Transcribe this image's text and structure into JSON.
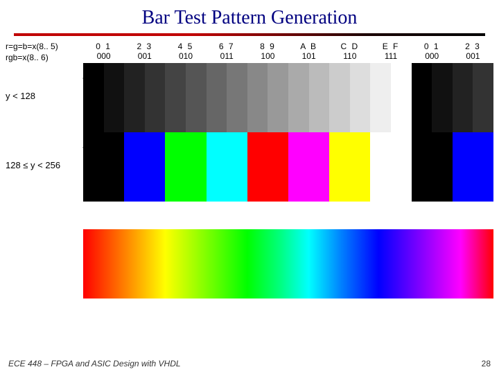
{
  "title": "Bar Test Pattern Generation",
  "left_formula_1": "r=g=b=x(8.. 5)",
  "left_formula_2": "rgb=x(8.. 6)",
  "columns": [
    {
      "hex": "0    1",
      "bin": "000"
    },
    {
      "hex": "2    3",
      "bin": "001"
    },
    {
      "hex": "4    5",
      "bin": "010"
    },
    {
      "hex": "6    7",
      "bin": "011"
    },
    {
      "hex": "8    9",
      "bin": "100"
    },
    {
      "hex": "A    B",
      "bin": "101"
    },
    {
      "hex": "C    D",
      "bin": "110"
    },
    {
      "hex": "E     F",
      "bin": "111"
    },
    {
      "hex": "0    1",
      "bin": "000"
    },
    {
      "hex": "2    3",
      "bin": "001"
    }
  ],
  "gray_row": {
    "label": "y < 128",
    "width_label": "32",
    "segments": [
      "#000000",
      "#111111",
      "#222222",
      "#333333",
      "#444444",
      "#555555",
      "#666666",
      "#777777",
      "#888888",
      "#999999",
      "#aaaaaa",
      "#bbbbbb",
      "#cccccc",
      "#dddddd",
      "#eeeeee",
      "#ffffff",
      "#000000",
      "#111111",
      "#222222",
      "#333333"
    ]
  },
  "color_row": {
    "label": "128 ≤ y < 256",
    "width_label": "64",
    "segments": [
      "#000000",
      "#0000ff",
      "#00ff00",
      "#00ffff",
      "#ff0000",
      "#ff00ff",
      "#ffff00",
      "#ffffff",
      "#000000",
      "#0000ff"
    ]
  },
  "footer_text": "ECE 448 – FPGA and ASIC Design with VHDL",
  "page_number": "28"
}
